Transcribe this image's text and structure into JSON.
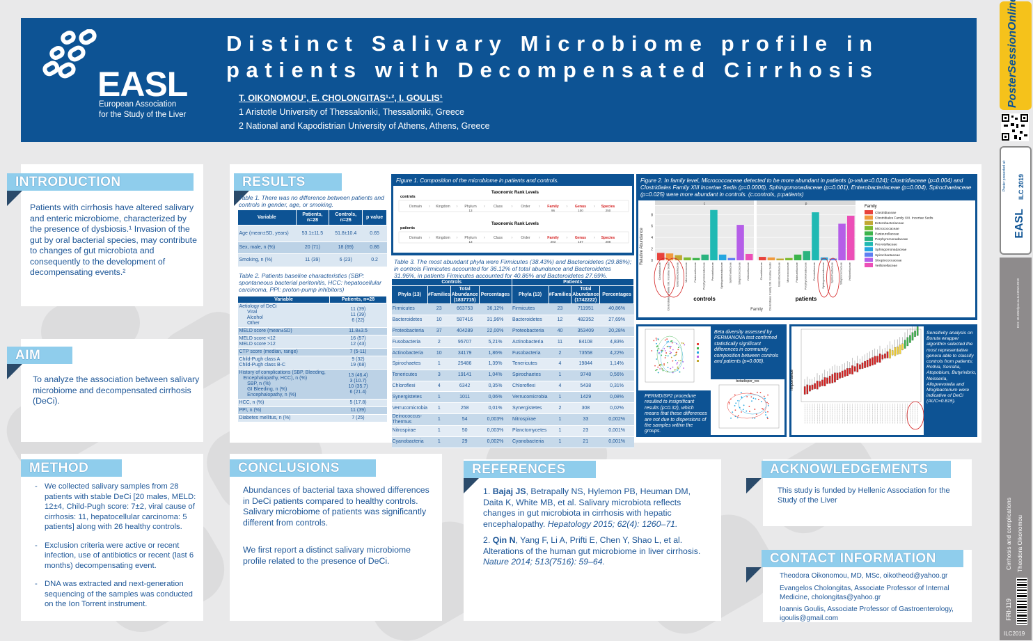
{
  "header": {
    "title_line1": "Distinct Salivary Microbiome profile in",
    "title_line2": "patients with Decompensated Cirrhosis",
    "authors": "T. OIKONOMOU¹, E. CHOLONGITAS¹·², I. GOULIS¹",
    "affiliation1": "1 Aristotle University of Thessaloniki, Thessaloniki, Greece",
    "affiliation2": "2 National and Kapodistrian University of Athens, Athens, Greece",
    "logo": "EASL",
    "logo_sub1": "European Association",
    "logo_sub2": "for the Study of the Liver"
  },
  "introduction": {
    "heading": "INTRODUCTION",
    "text": "Patients with cirrhosis have altered salivary and enteric microbiome, characterized by the presence of dysbiosis.¹ Invasion of the gut by oral bacterial species, may contribute to changes of gut microbiota and consequently to the development of decompensating events.²"
  },
  "aim": {
    "heading": "AIM",
    "text": "To analyze the association between salivary microbiome and decompensated cirrhosis (DeCi)."
  },
  "method": {
    "heading": "METHOD",
    "bullets": [
      "We collected salivary samples from 28 patients with stable DeCi [20 males, MELD: 12±4, Child-Pugh score: 7±2, viral cause of cirrhosis: 11, hepatocellular carcinoma: 5 patients] along with 26 healthy controls.",
      "Exclusion criteria were active or recent infection, use of antibiotics or recent (last 6 months) decompensating event.",
      "DNA was extracted and next-generation sequencing of the samples was conducted on the Ion Torrent instrument."
    ]
  },
  "results": {
    "heading": "RESULTS",
    "table1_caption": "Table 1. There was no difference between patients and controls in gender, age, or smoking.",
    "table1_headers": [
      "Variable",
      "Patients, n=28",
      "Controls, n=26",
      "p value"
    ],
    "table1_rows": [
      [
        "Age (mean±SD, years)",
        "53.1±11.5",
        "51.8±10.4",
        "0.65"
      ],
      [
        "Sex, male,  n (%)",
        "20 (71)",
        "18 (69)",
        "0.86"
      ],
      [
        "Smoking, n (%)",
        "11 (39)",
        "6 (23)",
        "0.2"
      ]
    ],
    "table2_caption": "Table 2. Patients baseline characteristics (SBP: spontaneous bacterial peritonitis, HCC: hepatocellular carcinoma, PPI: proton-pump inhibitors)",
    "table2_headers": [
      "Variable",
      "Patients, n=28"
    ],
    "table2_rows": [
      [
        "Aetiology of DeCi\n      Viral\n      Alcohol\n      Other",
        "11 (39)\n11 (39)\n6 (22)"
      ],
      [
        "MELD score (mean±SD)",
        "11.8±3.5"
      ],
      [
        "MELD score <12\nMELD score >12",
        "16 (57)\n12 (43)"
      ],
      [
        "CTP score (median, range)",
        "7 (5-11)"
      ],
      [
        "Child-Pugh class A\nChild-Pugh class B-C",
        "9 (32)\n19 (68)"
      ],
      [
        "History of complications (SBP, Bleeding,\n   Encephalopathy, HCC), n (%)\n      SBP, n (%)\n      GI Bleeding, n (%)\n      Encephalopathy, n (%)",
        "13 (46.4)\n3 (10.7)\n10 (35.7)\n6 (21.4)"
      ],
      [
        "HCC, n (%)",
        "5 (17.8)"
      ],
      [
        "PPI, n (%)",
        "11 (39)"
      ],
      [
        "Diabetes mellitus, n (%)",
        "7 (25)"
      ]
    ],
    "fig1_caption": "Figure 1. Composition of the microbiome in patients and controls.",
    "fig1": {
      "controls_label": "controls",
      "patients_label": "patients",
      "rank_title": "Taxonomic Rank Levels",
      "ranks": [
        "Domain",
        "Kingdom",
        "Phylum",
        "Class",
        "Order",
        "Family",
        "Genus",
        "Species"
      ],
      "controls_counts": [
        "",
        "",
        "13",
        "",
        "",
        "96",
        "100",
        "250"
      ],
      "patients_counts": [
        "",
        "",
        "13",
        "",
        "",
        "203",
        "107",
        "288"
      ]
    },
    "table3_caption": "Table 3. The most abundant phyla were Firmicutes (38.43%) and Bacteroidetes (29.88%); in controls Firmicutes accounted for 36.12% of total abundance and Bacteroidetes 31.96%, in patients Firmicutes accounted for 40.86% and Bacteroidetes 27.69%.",
    "table3_groups": [
      "Controls",
      "Patients"
    ],
    "table3_headers": [
      "Phyla (13)",
      "#Families",
      "Total Abundance (1837715)",
      "Percentages",
      "Phyla (13)",
      "#Families",
      "Total Abundance (1742222)",
      "Percentages"
    ],
    "table3_rows": [
      [
        "Firmicutes",
        "23",
        "663753",
        "36,12%",
        "Firmicutes",
        "23",
        "711951",
        "40,86%"
      ],
      [
        "Bacteroidetes",
        "10",
        "587416",
        "31,96%",
        "Bacteroidetes",
        "12",
        "482352",
        "27,69%"
      ],
      [
        "Proteobacteria",
        "37",
        "404289",
        "22,00%",
        "Proteobacteria",
        "40",
        "353409",
        "20,28%"
      ],
      [
        "Fusobacteria",
        "2",
        "95707",
        "5,21%",
        "Actinobacteria",
        "11",
        "84108",
        "4,83%"
      ],
      [
        "Actinobacteria",
        "10",
        "34179",
        "1,86%",
        "Fusobacteria",
        "2",
        "73558",
        "4,22%"
      ],
      [
        "Spirochaetes",
        "1",
        "25486",
        "1,39%",
        "Tenericutes",
        "4",
        "19844",
        "1,14%"
      ],
      [
        "Tenericutes",
        "3",
        "19141",
        "1,04%",
        "Spirochaetes",
        "1",
        "9748",
        "0,56%"
      ],
      [
        "Chloroflexi",
        "4",
        "6342",
        "0,35%",
        "Chloroflexi",
        "4",
        "5438",
        "0,31%"
      ],
      [
        "Synergistetes",
        "1",
        "1011",
        "0,06%",
        "Verrucomicrobia",
        "1",
        "1429",
        "0,08%"
      ],
      [
        "Verrucomicrobia",
        "1",
        "258",
        "0,01%",
        "Synergistetes",
        "2",
        "308",
        "0,02%"
      ],
      [
        "Deinococcus-Thermus",
        "1",
        "54",
        "0,003%",
        "Nitrospirae",
        "1",
        "33",
        "0,002%"
      ],
      [
        "Nitrospirae",
        "1",
        "50",
        "0,003%",
        "Planctomycetes",
        "1",
        "23",
        "0,001%"
      ],
      [
        "Cyanobacteria",
        "1",
        "29",
        "0,002%",
        "Cyanobacteria",
        "1",
        "21",
        "0,001%"
      ]
    ],
    "fig2_caption": "Figure 2. In family level, Micrococcaceae detected to be more abundant in patients (p-value=0.024); Clostridiaceae (p=0.004) and Clostridiales Family XIII Incertae Sedis (p=0.0006), Sphingomonadaceae (p=0.001), Enterobacteriaceae (p=0.004), Spirochaetaceae (p=0.025) were more abundant in controls. (c:controls, p:patients)",
    "fig2": {
      "legend_title": "Family",
      "families": [
        "Clostridiaceae",
        "Clostridiales Family XIII. Incertae Sedis",
        "Enterobacteriaceae",
        "Micrococcaceae",
        "Pasteurellaceae",
        "Porphyromonadaceae",
        "Prevotellaceae",
        "Sphingomonadaceae",
        "Spirochaetaceae",
        "Streptococcaceae",
        "Veillonellaceae"
      ],
      "colors": [
        "#e8423b",
        "#f19a3e",
        "#c1a831",
        "#7dba2f",
        "#3cb44b",
        "#2ab37f",
        "#1fb9b3",
        "#25a6e0",
        "#5e7ff2",
        "#b55ee8",
        "#ec4fb7"
      ],
      "panel_labels": [
        "c",
        "p"
      ],
      "x_groups": [
        "controls",
        "patients"
      ],
      "x_label": "Family",
      "y_label": "Relative Abundance",
      "y_ticks": [
        "0",
        "2",
        "4",
        "6",
        "8"
      ],
      "controls_values": [
        1.3,
        1.2,
        0.9,
        0.5,
        0.4,
        1.0,
        8.8,
        1.0,
        0.4,
        6.2,
        1.1
      ],
      "patients_values": [
        0.6,
        0.5,
        0.3,
        0.4,
        1.0,
        1.6,
        8.4,
        0.5,
        0.3,
        6.4,
        7.8
      ]
    },
    "fig3_caption": "Beta diversity assessed by PERMANOVA test confirmed statistically significant differences in community composition between controls and patients (p=0.008).",
    "fig3b_caption": "PERMDISP2 procedure resulted to insignificant results (p=0.32), which means that these differences are not due to dispersions of the samples within the groups.",
    "fig3_inset_title": "betadisper_res",
    "fig4_caption": "Sensitivity analysis on Boruta wrapper algorithm selected the most representative genera able to classify controls from patients; Rothia, Serratia, Atopobium, Butyrivibrio, Neisseria, Alloprevotella and Mogibacterium were indicative of DeCi (AUC=0.815).",
    "fig4_ylabel": "Importance"
  },
  "conclusions": {
    "heading": "CONCLUSIONS",
    "p1": "Abundances of bacterial taxa showed differences in DeCi patients compared to healthy controls. Salivary microbiome of patients was significantly different from controls.",
    "p2": "We first report a distinct salivary microbiome profile related to the presence of DeCi."
  },
  "references": {
    "heading": "REFERENCES",
    "ref1_num": "1.",
    "ref1_author": "Bajaj JS",
    "ref1_rest": ", Betrapally NS, Hylemon PB, Heuman DM, Daita K, White MB, et al. Salivary microbiota reflects changes in gut microbiota in cirrhosis with hepatic encephalopathy.",
    "ref1_journal": "Hepatology 2015; 62(4): 1260–71.",
    "ref2_num": "2.",
    "ref2_author": "Qin N",
    "ref2_rest": ", Yang F, Li A, Prifti E, Chen Y, Shao L, et al. Alterations of the human gut microbiome in liver cirrhosis.",
    "ref2_journal": "Nature 2014; 513(7516): 59–64."
  },
  "acknowledgements": {
    "heading": "ACKNOWLEDGEMENTS",
    "text": "This study is funded by Hellenic Association for the Study of the Liver"
  },
  "contact": {
    "heading": "CONTACT INFORMATION",
    "c1_name": "Theodora Oikonomou, MD, MSc, ",
    "c1_email": "oikotheod@yahoo.gr",
    "c2_name": "Evangelos Cholongitas, Associate Professor of Internal Medicine, ",
    "c2_email": "cholongitas@yahoo.gr",
    "c3_name": "Ioannis Goulis, Associate Professor of Gastroenterology, ",
    "c3_email": "igoulis@gmail.com"
  },
  "sidebar": {
    "poster_session": "PosterSessionOnline",
    "presented_at": "Poster presented at:",
    "easl_tab": "EASL",
    "ilc": "ILC 2019",
    "doi": "DOI: 10.3252/pso.eu.ILC2019.2019",
    "topic": "Cirrhosis and complications",
    "author": "Theodora Oikonomou",
    "code": "FRI-119",
    "bottom": "ILC2019"
  }
}
